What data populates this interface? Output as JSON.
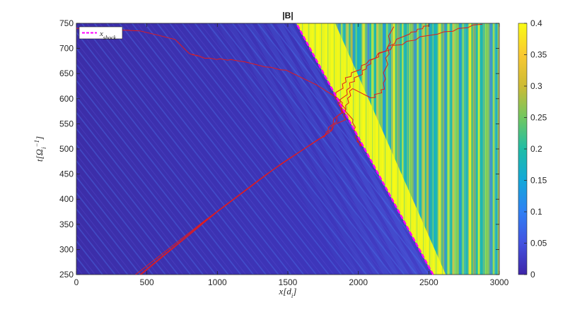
{
  "chart_data": {
    "type": "heatmap",
    "title": "|B|",
    "xlabel": "x[d_i]",
    "ylabel": "t[Ω_i^-1]",
    "xlim": [
      0,
      3000
    ],
    "ylim": [
      250,
      750
    ],
    "x_ticks": [
      0,
      500,
      1000,
      1500,
      2000,
      2500,
      3000
    ],
    "y_ticks": [
      250,
      300,
      350,
      400,
      450,
      500,
      550,
      600,
      650,
      700,
      750
    ],
    "colorbar": {
      "range": [
        0,
        0.4
      ],
      "ticks": [
        0,
        0.05,
        0.1,
        0.15,
        0.2,
        0.25,
        0.3,
        0.35,
        0.4
      ],
      "colormap": "parula",
      "stops": [
        "#3e26a8",
        "#4352e0",
        "#2f80f4",
        "#13a8d9",
        "#1fbda6",
        "#71c760",
        "#cdbb35",
        "#f9c932",
        "#f9fb14"
      ]
    },
    "shock": {
      "name": "x_shock",
      "color": "#ff00ff",
      "points": [
        [
          2530,
          250
        ],
        [
          1560,
          750
        ]
      ]
    },
    "legend": {
      "placement": "top-left",
      "label": "x_shock"
    },
    "trajectory_color": "#e31a1c",
    "trajectories": [
      [
        [
          420,
          250
        ],
        [
          900,
          355
        ],
        [
          1350,
          450
        ],
        [
          1720,
          520
        ],
        [
          1900,
          560
        ],
        [
          1870,
          590
        ],
        [
          1950,
          630
        ],
        [
          2050,
          660
        ],
        [
          2150,
          690
        ],
        [
          2350,
          730
        ],
        [
          2500,
          745
        ]
      ],
      [
        [
          450,
          250
        ],
        [
          950,
          365
        ],
        [
          1400,
          460
        ],
        [
          1750,
          525
        ],
        [
          1880,
          575
        ],
        [
          1840,
          605
        ],
        [
          1920,
          640
        ],
        [
          2050,
          670
        ],
        [
          2250,
          705
        ],
        [
          2550,
          730
        ],
        [
          2880,
          748
        ]
      ],
      [
        [
          460,
          250
        ],
        [
          1000,
          375
        ],
        [
          1450,
          470
        ],
        [
          1780,
          530
        ],
        [
          1900,
          580
        ],
        [
          1960,
          620
        ],
        [
          2100,
          600
        ],
        [
          2180,
          620
        ],
        [
          2200,
          680
        ],
        [
          2240,
          745
        ]
      ],
      [
        [
          0,
          740
        ],
        [
          450,
          735
        ],
        [
          700,
          718
        ],
        [
          800,
          690
        ],
        [
          900,
          682
        ],
        [
          1150,
          675
        ],
        [
          1500,
          655
        ],
        [
          1700,
          628
        ],
        [
          1860,
          600
        ],
        [
          1950,
          560
        ],
        [
          2000,
          515
        ],
        [
          2020,
          505
        ]
      ]
    ]
  }
}
